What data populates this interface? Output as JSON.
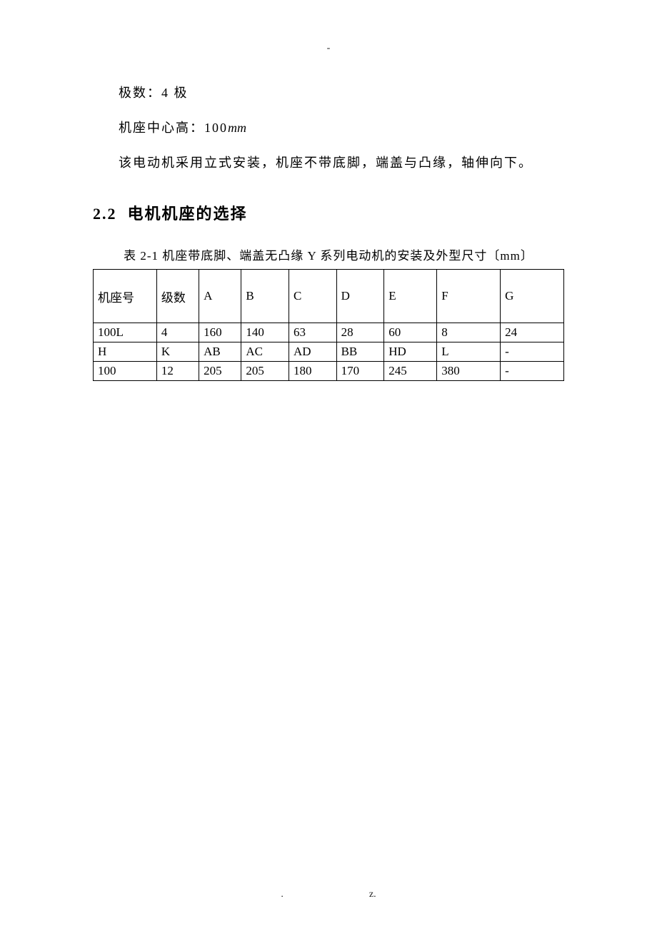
{
  "header_mark": "-",
  "paragraphs": {
    "p1_prefix": "极数：",
    "p1_value": "4 极",
    "p2_prefix": "机座中心高：",
    "p2_value": "100",
    "p2_unit": "mm",
    "p3": "该电动机采用立式安装，机座不带底脚，端盖与凸缘，轴伸向下。"
  },
  "section": {
    "number": "2.2",
    "title": "电机机座的选择"
  },
  "table": {
    "caption": "表 2-1 机座带底脚、端盖无凸缘 Y 系列电动机的安装及外型尺寸〔mm〕",
    "col_widths_pct": [
      12,
      8,
      8,
      9,
      9,
      9,
      10,
      12,
      12
    ],
    "header": [
      "机座号",
      "级数",
      "A",
      "B",
      "C",
      "D",
      "E",
      "F",
      "G"
    ],
    "rows": [
      [
        "100L",
        "4",
        "160",
        "140",
        "63",
        "28",
        "60",
        "8",
        "24"
      ],
      [
        "H",
        "K",
        "AB",
        "AC",
        "AD",
        "BB",
        "HD",
        " L",
        "-"
      ],
      [
        "100",
        "12",
        "205",
        "205",
        "180",
        "170",
        "245",
        "380",
        "-"
      ]
    ]
  },
  "footer": {
    "left": ".",
    "right": "z."
  }
}
